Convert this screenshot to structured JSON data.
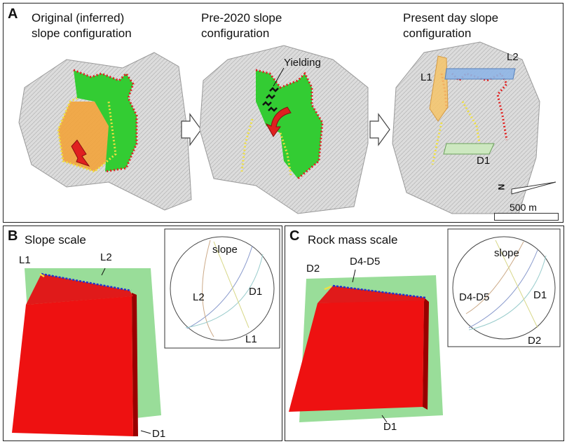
{
  "panel_a": {
    "letter": "A",
    "captions": [
      [
        "Original (inferred)",
        "slope configuration"
      ],
      [
        "Pre-2020 slope",
        "configuration"
      ],
      [
        "Present day slope",
        "configuration"
      ]
    ],
    "yielding": "Yielding",
    "labels": {
      "l1": "L1",
      "l2": "L2",
      "d1": "D1"
    },
    "north": "N",
    "scale": "500 m"
  },
  "panel_b": {
    "letter": "B",
    "title": "Slope scale",
    "labels": {
      "l1": "L1",
      "l2": "L2",
      "d1": "D1"
    },
    "stereonet": {
      "slope": "slope",
      "l2": "L2",
      "d1": "D1",
      "l1": "L1"
    }
  },
  "panel_c": {
    "letter": "C",
    "title": "Rock mass scale",
    "labels": {
      "d2": "D2",
      "d4d5": "D4-D5",
      "d1": "D1"
    },
    "stereonet": {
      "slope": "slope",
      "d4d5": "D4-D5",
      "d1": "D1",
      "d2": "D2"
    }
  },
  "colors": {
    "terrain": "#d9d9d9",
    "slide_green": "#33cc33",
    "slide_orange": "#f2a33a",
    "outline_red": "#e02020",
    "outline_yellow": "#f0e040",
    "block_red": "#ee1111",
    "plane_green": "#99dd99",
    "l1_fill": "#f6c56a",
    "l2_fill": "#8fb6e6",
    "d1_fill": "#cde8c0"
  }
}
